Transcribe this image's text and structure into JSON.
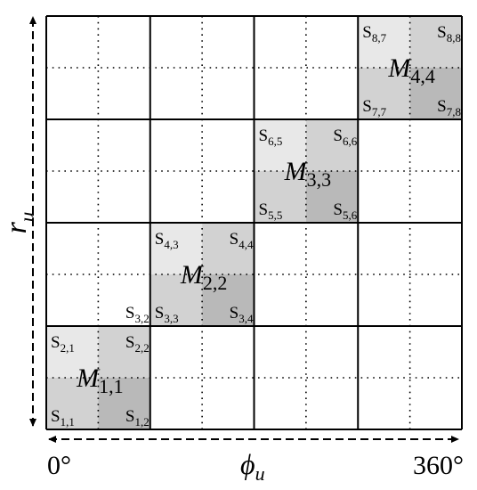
{
  "axes": {
    "y_label": "r",
    "y_label_sub": "u",
    "x_label": "ϕ",
    "x_label_sub": "u",
    "x_start": "0°",
    "x_end": "360°"
  },
  "grid": {
    "rows": 4,
    "cols": 4,
    "minor_divisions": 2
  },
  "colors": {
    "light": "#e8e8e8",
    "mid": "#d2d2d2",
    "dark": "#b9b9b9",
    "line": "#000000"
  },
  "blocks": [
    {
      "label": "M",
      "label_sub": "1,1",
      "row": 1,
      "col": 1,
      "cells": [
        {
          "base": "S",
          "sub": "2,1",
          "pos": "tl",
          "shade": "light"
        },
        {
          "base": "S",
          "sub": "2,2",
          "pos": "tr",
          "shade": "mid"
        },
        {
          "base": "S",
          "sub": "1,1",
          "pos": "bl",
          "shade": "mid"
        },
        {
          "base": "S",
          "sub": "1,2",
          "pos": "br",
          "shade": "dark"
        }
      ]
    },
    {
      "label": "M",
      "label_sub": "2,2",
      "row": 2,
      "col": 2,
      "cells": [
        {
          "base": "S",
          "sub": "4,3",
          "pos": "tl",
          "shade": "light"
        },
        {
          "base": "S",
          "sub": "4,4",
          "pos": "tr",
          "shade": "mid"
        },
        {
          "base": "S",
          "sub": "3,3",
          "pos": "bl",
          "shade": "mid"
        },
        {
          "base": "S",
          "sub": "3,4",
          "pos": "br",
          "shade": "dark"
        }
      ]
    },
    {
      "label": "M",
      "label_sub": "3,3",
      "row": 3,
      "col": 3,
      "cells": [
        {
          "base": "S",
          "sub": "6,5",
          "pos": "tl",
          "shade": "light"
        },
        {
          "base": "S",
          "sub": "6,6",
          "pos": "tr",
          "shade": "mid"
        },
        {
          "base": "S",
          "sub": "5,5",
          "pos": "bl",
          "shade": "mid"
        },
        {
          "base": "S",
          "sub": "5,6",
          "pos": "br",
          "shade": "dark"
        }
      ]
    },
    {
      "label": "M",
      "label_sub": "4,4",
      "row": 4,
      "col": 4,
      "cells": [
        {
          "base": "S",
          "sub": "8,7",
          "pos": "tl",
          "shade": "light"
        },
        {
          "base": "S",
          "sub": "8,8",
          "pos": "tr",
          "shade": "mid"
        },
        {
          "base": "S",
          "sub": "7,7",
          "pos": "bl",
          "shade": "mid"
        },
        {
          "base": "S",
          "sub": "7,8",
          "pos": "br",
          "shade": "dark"
        }
      ]
    }
  ],
  "extra_labels": [
    {
      "base": "S",
      "sub": "3,2",
      "row": 2,
      "col": 1,
      "pos": "br"
    }
  ]
}
